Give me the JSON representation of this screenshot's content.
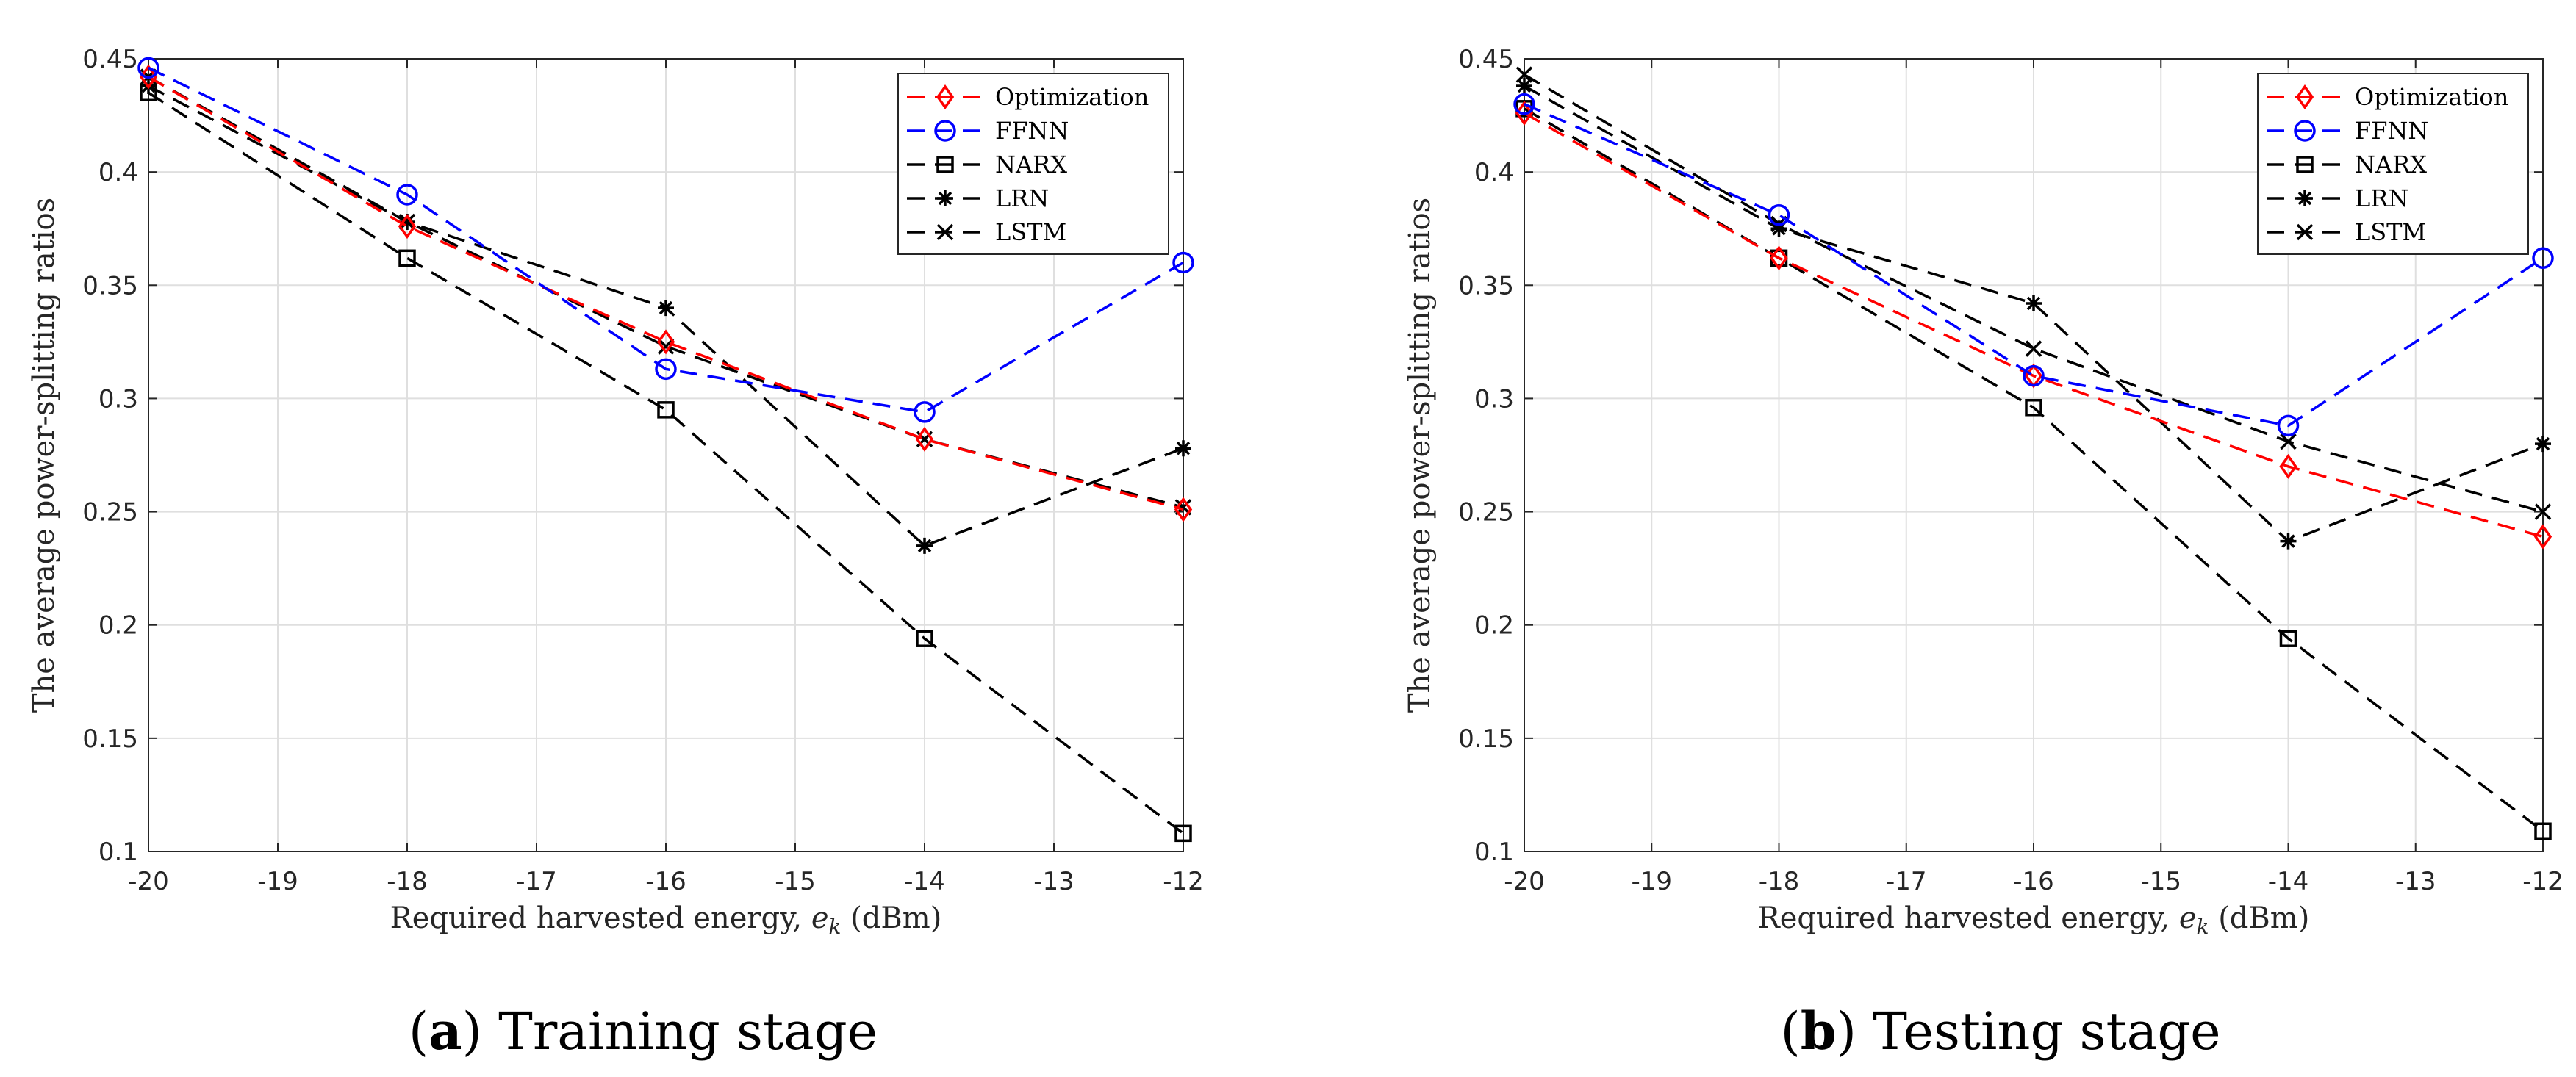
{
  "chart_data": [
    {
      "type": "line",
      "panel_label": "a",
      "caption": "Training stage",
      "xlabel_prefix": "Required harvested energy, ",
      "xlabel_var": "e",
      "xlabel_sub": "k",
      "xlabel_suffix": " (dBm)",
      "ylabel": "The average power-splitting ratios",
      "xlim": [
        -20,
        -12
      ],
      "ylim": [
        0.1,
        0.45
      ],
      "xticks": [
        -20,
        -19,
        -18,
        -17,
        -16,
        -15,
        -14,
        -13,
        -12
      ],
      "yticks": [
        0.1,
        0.15,
        0.2,
        0.25,
        0.3,
        0.35,
        0.4,
        0.45
      ],
      "grid": true,
      "legend_position": "top-right",
      "x": [
        -20,
        -18,
        -16,
        -14,
        -12
      ],
      "series": [
        {
          "name": "Optimization",
          "color": "#ff0000",
          "marker": "diamond",
          "values": [
            0.442,
            0.376,
            0.325,
            0.282,
            0.251
          ]
        },
        {
          "name": "FFNN",
          "color": "#0000ff",
          "marker": "circle",
          "values": [
            0.446,
            0.39,
            0.313,
            0.294,
            0.36
          ]
        },
        {
          "name": "NARX",
          "color": "#000000",
          "marker": "square",
          "values": [
            0.435,
            0.362,
            0.295,
            0.194,
            0.108
          ]
        },
        {
          "name": "LRN",
          "color": "#000000",
          "marker": "asterisk",
          "values": [
            0.438,
            0.378,
            0.34,
            0.235,
            0.278
          ]
        },
        {
          "name": "LSTM",
          "color": "#000000",
          "marker": "cross",
          "values": [
            0.442,
            0.378,
            0.323,
            0.282,
            0.252
          ]
        }
      ]
    },
    {
      "type": "line",
      "panel_label": "b",
      "caption": "Testing stage",
      "xlabel_prefix": "Required harvested energy, ",
      "xlabel_var": "e",
      "xlabel_sub": "k",
      "xlabel_suffix": " (dBm)",
      "ylabel": "The average power-splitting ratios",
      "xlim": [
        -20,
        -12
      ],
      "ylim": [
        0.1,
        0.45
      ],
      "xticks": [
        -20,
        -19,
        -18,
        -17,
        -16,
        -15,
        -14,
        -13,
        -12
      ],
      "yticks": [
        0.1,
        0.15,
        0.2,
        0.25,
        0.3,
        0.35,
        0.4,
        0.45
      ],
      "grid": true,
      "legend_position": "top-right",
      "x": [
        -20,
        -18,
        -16,
        -14,
        -12
      ],
      "series": [
        {
          "name": "Optimization",
          "color": "#ff0000",
          "marker": "diamond",
          "values": [
            0.426,
            0.362,
            0.31,
            0.27,
            0.239
          ]
        },
        {
          "name": "FFNN",
          "color": "#0000ff",
          "marker": "circle",
          "values": [
            0.43,
            0.381,
            0.31,
            0.288,
            0.362
          ]
        },
        {
          "name": "NARX",
          "color": "#000000",
          "marker": "square",
          "values": [
            0.428,
            0.362,
            0.296,
            0.194,
            0.109
          ]
        },
        {
          "name": "LRN",
          "color": "#000000",
          "marker": "asterisk",
          "values": [
            0.438,
            0.375,
            0.342,
            0.237,
            0.28
          ]
        },
        {
          "name": "LSTM",
          "color": "#000000",
          "marker": "cross",
          "values": [
            0.443,
            0.377,
            0.322,
            0.281,
            0.25
          ]
        }
      ]
    }
  ]
}
